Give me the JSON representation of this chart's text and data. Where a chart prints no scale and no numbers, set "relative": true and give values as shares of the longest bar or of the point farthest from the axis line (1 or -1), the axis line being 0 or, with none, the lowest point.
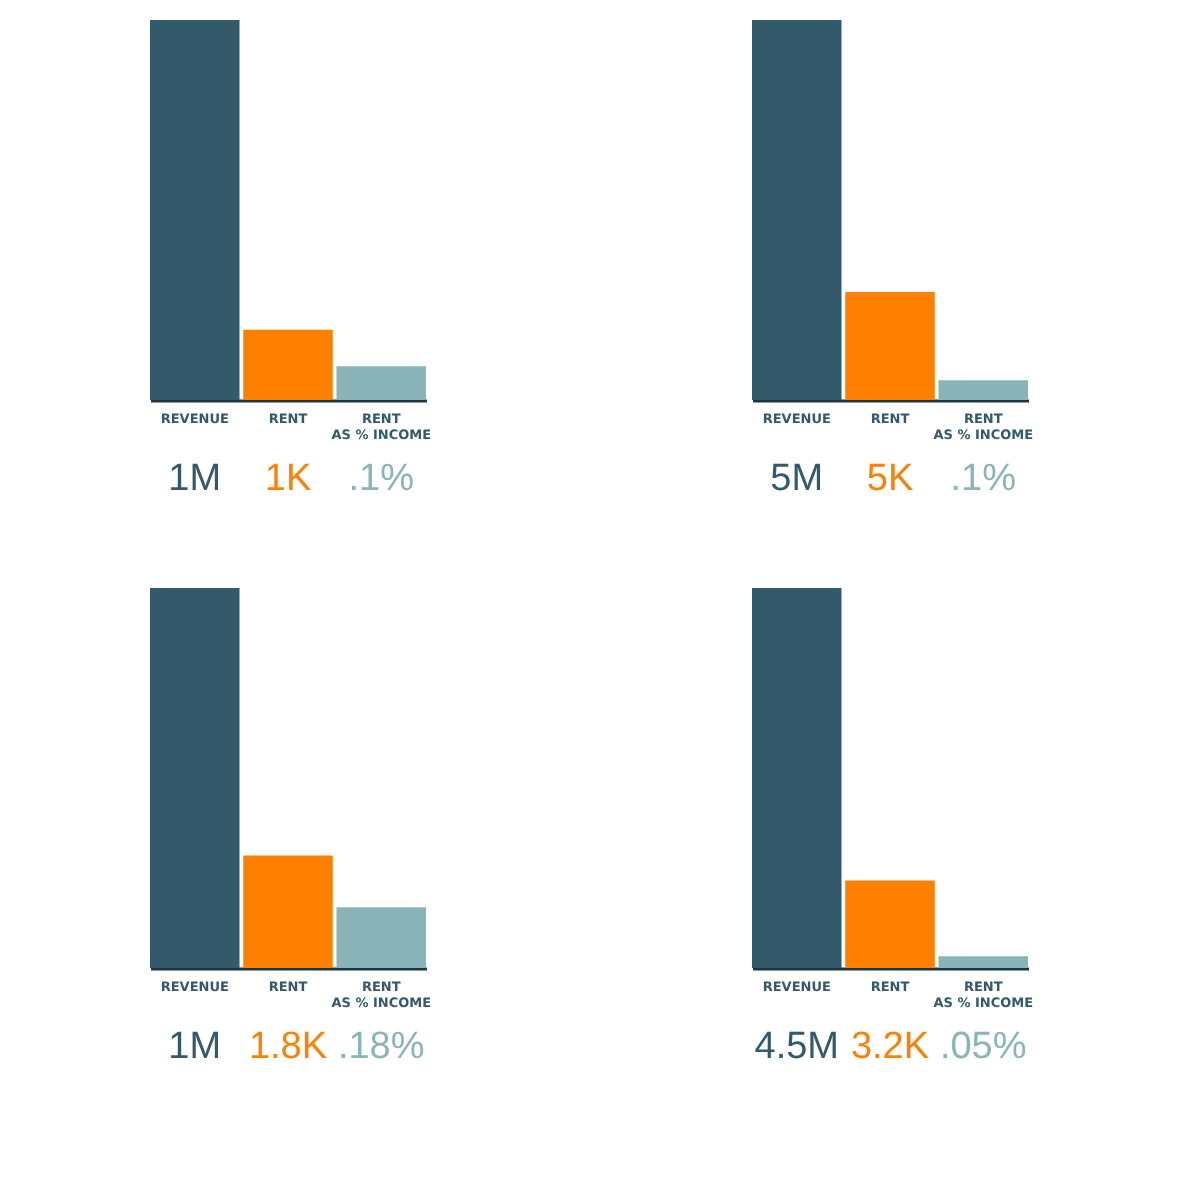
{
  "chart_data": [
    {
      "type": "bar",
      "relative": true,
      "categories": [
        "REVENUE",
        "RENT",
        "RENT AS % INCOME"
      ],
      "values": [
        1,
        0.185,
        0.089
      ],
      "colors": [
        "#33596a",
        "#ff8000",
        "#8ab5b8"
      ],
      "annotations": [
        "1M",
        "1K",
        ".1%"
      ]
    },
    {
      "type": "bar",
      "relative": true,
      "categories": [
        "REVENUE",
        "RENT",
        "RENT AS % INCOME"
      ],
      "values": [
        1,
        0.284,
        0.052
      ],
      "colors": [
        "#33596a",
        "#ff8000",
        "#8ab5b8"
      ],
      "annotations": [
        "5M",
        "5K",
        ".1%"
      ]
    },
    {
      "type": "bar",
      "relative": true,
      "categories": [
        "REVENUE",
        "RENT",
        "RENT AS % INCOME"
      ],
      "values": [
        1,
        0.296,
        0.16
      ],
      "colors": [
        "#33596a",
        "#ff8000",
        "#8ab5b8"
      ],
      "annotations": [
        "1M",
        "1.8K",
        ".18%"
      ]
    },
    {
      "type": "bar",
      "relative": true,
      "categories": [
        "REVENUE",
        "RENT",
        "RENT AS % INCOME"
      ],
      "values": [
        1,
        0.23,
        0.031
      ],
      "colors": [
        "#33596a",
        "#ff8000",
        "#8ab5b8"
      ],
      "annotations": [
        "4.5M",
        "3.2K",
        ".05%"
      ]
    }
  ]
}
